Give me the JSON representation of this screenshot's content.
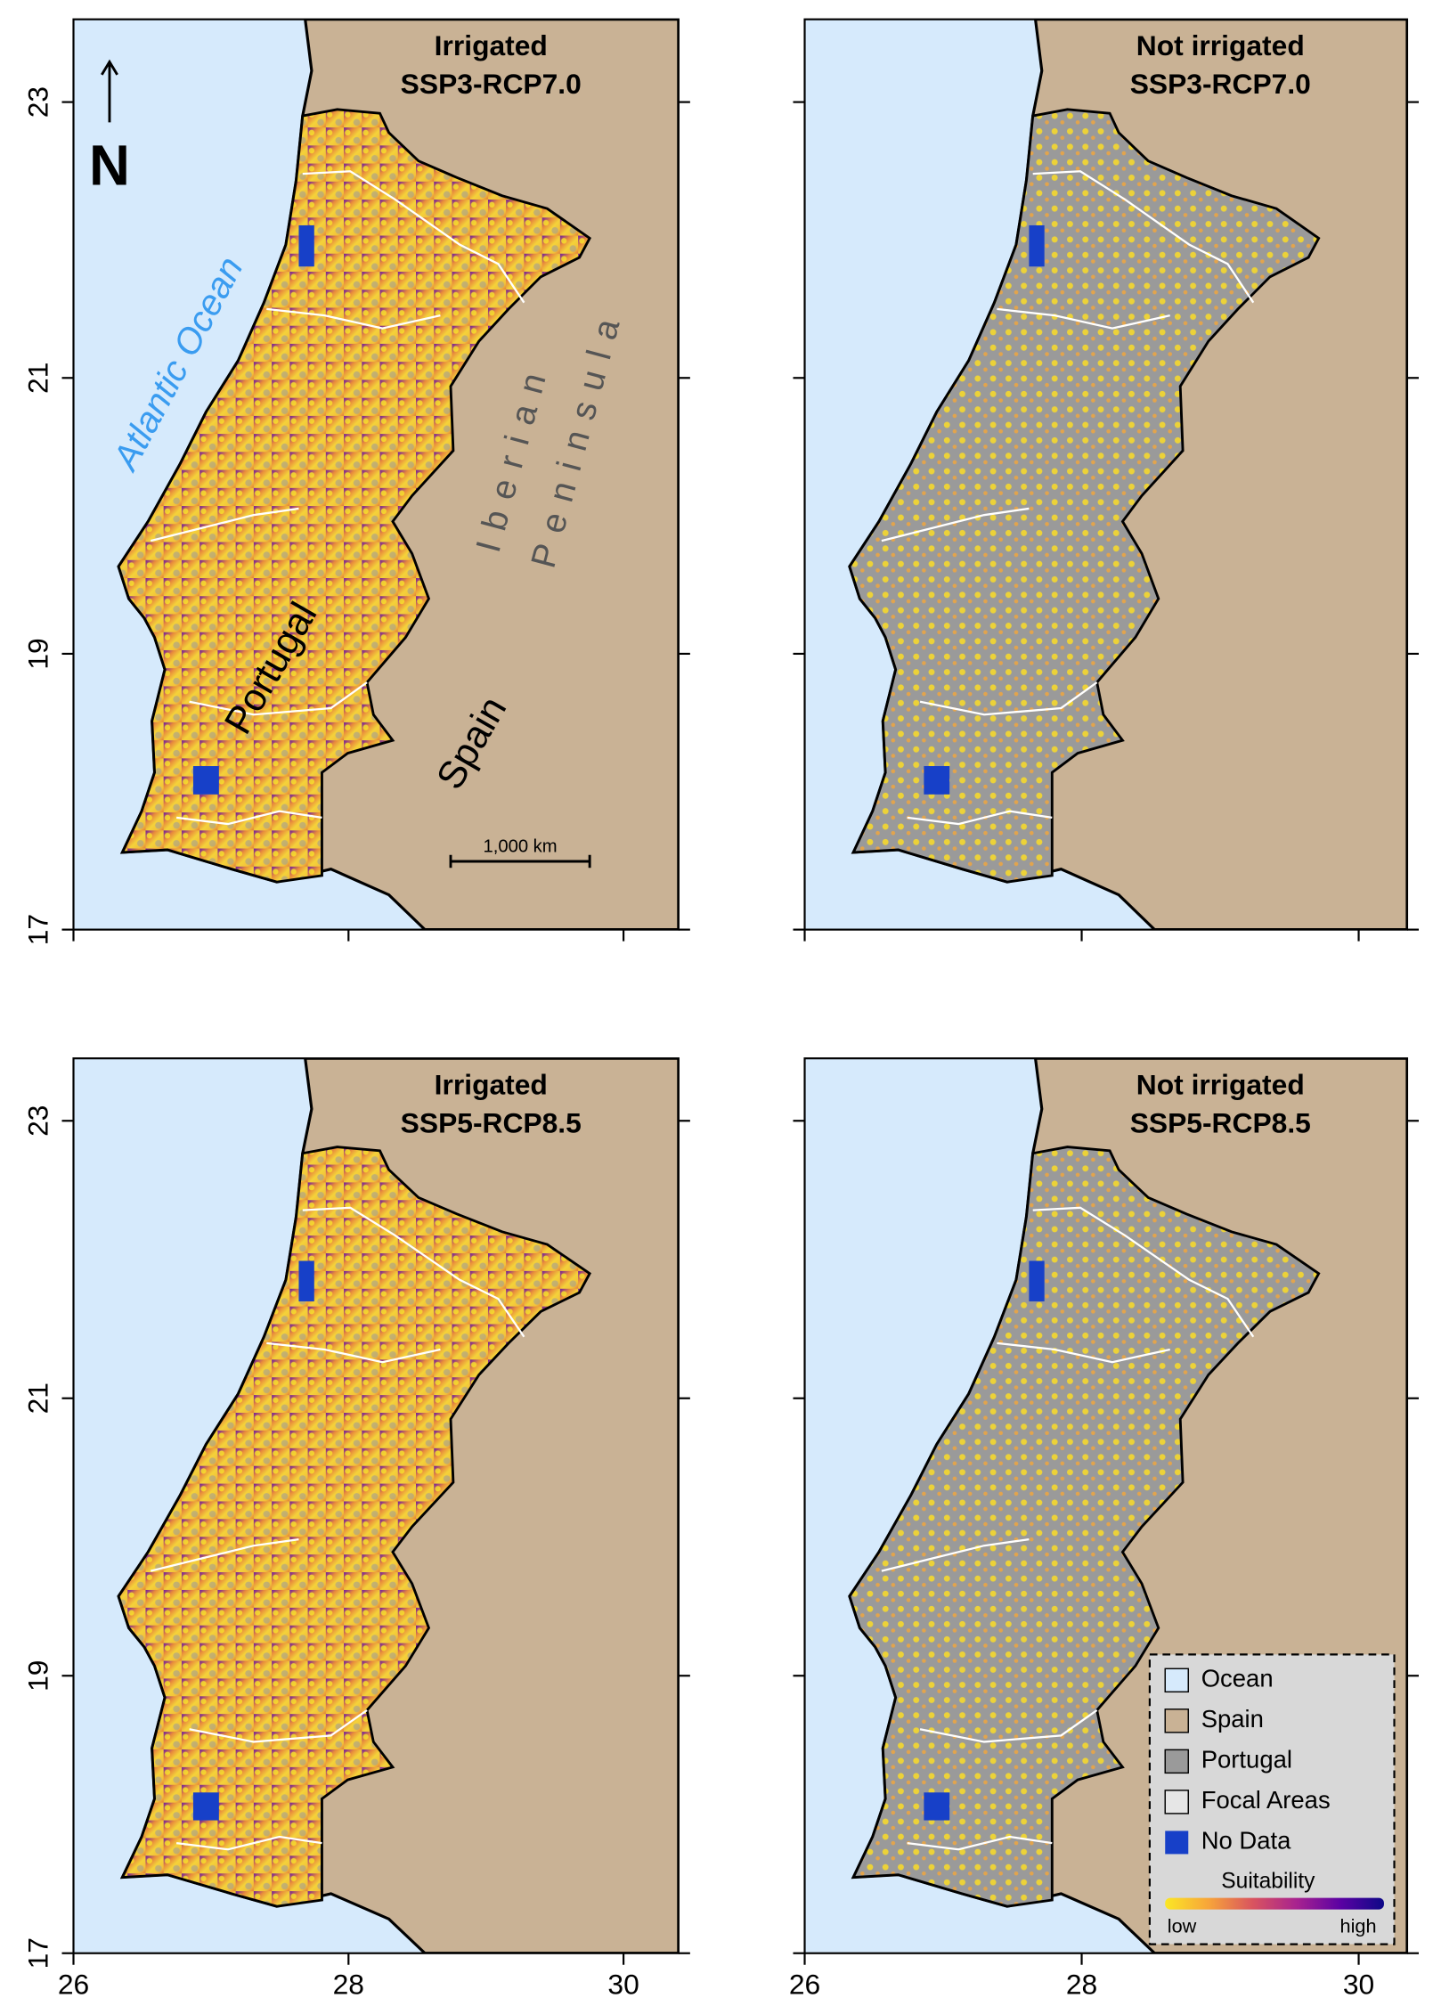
{
  "figure": {
    "panels": [
      {
        "title": [
          "Irrigated",
          "SSP3-RCP7.0"
        ],
        "xlim": [
          26,
          30.4
        ],
        "ylim": [
          17,
          23.6
        ]
      },
      {
        "title": [
          "Not irrigated",
          "SSP3-RCP7.0"
        ],
        "xlim": [
          26,
          30.35
        ],
        "ylim": [
          17,
          23.6
        ]
      },
      {
        "title": [
          "Irrigated",
          "SSP5-RCP8.5"
        ],
        "xlim": [
          26,
          30.4
        ],
        "ylim": [
          17,
          23.45
        ]
      },
      {
        "title": [
          "Not irrigated",
          "SSP5-RCP8.5"
        ],
        "xlim": [
          26,
          30.35
        ],
        "ylim": [
          17,
          23.45
        ]
      }
    ],
    "xticks": [
      26,
      28,
      30
    ],
    "yticks": [
      17,
      19,
      21,
      23
    ],
    "annotations": {
      "north": "N",
      "ocean": "Atlantic Ocean",
      "peninsula": [
        "Iberian",
        "Peninsula"
      ],
      "country": "Portugal",
      "neighbor": "Spain",
      "scale": "1,000 km"
    },
    "legend": {
      "items": [
        {
          "label": "Ocean",
          "color": "#d6eafc"
        },
        {
          "label": "Spain",
          "color": "#c9b295"
        },
        {
          "label": "Portugal",
          "color": "#9a9a9a"
        },
        {
          "label": "Focal Areas",
          "color": "#e6e6e6"
        },
        {
          "label": "No Data",
          "color": "#1740c8"
        }
      ],
      "colorbar_title": "Suitability",
      "colorbar_colors": [
        "#fbe725",
        "#f7a43a",
        "#d9545f",
        "#a8238f",
        "#5b02a3",
        "#0d0887"
      ],
      "low": "low",
      "high": "high"
    }
  }
}
